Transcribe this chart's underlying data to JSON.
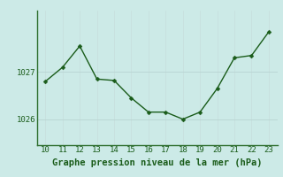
{
  "x": [
    10,
    11,
    12,
    13,
    14,
    15,
    16,
    17,
    18,
    19,
    20,
    21,
    22,
    23
  ],
  "y": [
    1026.8,
    1027.1,
    1027.55,
    1026.85,
    1026.82,
    1026.45,
    1026.15,
    1026.15,
    1026.0,
    1026.15,
    1026.65,
    1027.3,
    1027.35,
    1027.85
  ],
  "line_color": "#1a5c1a",
  "marker_color": "#1a5c1a",
  "bg_color": "#cceae7",
  "grid_color_v": "#c8e0de",
  "grid_color_h": "#b8d4d2",
  "border_color": "#2d6e2d",
  "label_color": "#1a5c1a",
  "xlabel": "Graphe pression niveau de la mer (hPa)",
  "xlim": [
    9.5,
    23.5
  ],
  "ylim": [
    1025.45,
    1028.3
  ],
  "yticks": [
    1026,
    1027
  ],
  "xticks": [
    10,
    11,
    12,
    13,
    14,
    15,
    16,
    17,
    18,
    19,
    20,
    21,
    22,
    23
  ],
  "tick_fontsize": 6.5,
  "xlabel_fontsize": 7.5,
  "linewidth": 1.0,
  "markersize": 2.5
}
